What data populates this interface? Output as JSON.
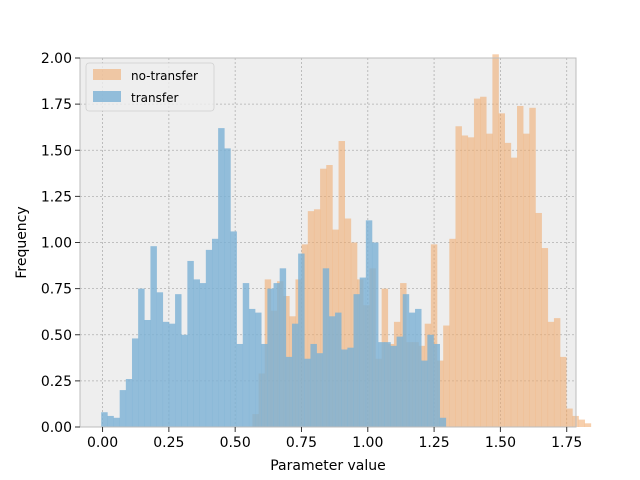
{
  "chart_data": {
    "type": "bar",
    "xlabel": "Parameter value",
    "ylabel": "Frequency",
    "xlim": [
      -0.085,
      1.785
    ],
    "ylim": [
      0,
      2.0
    ],
    "xticks": [
      "0.00",
      "0.25",
      "0.50",
      "0.75",
      "1.00",
      "1.25",
      "1.50",
      "1.75"
    ],
    "xtick_values": [
      0.0,
      0.25,
      0.5,
      0.75,
      1.0,
      1.25,
      1.5,
      1.75
    ],
    "yticks": [
      "0.00",
      "0.25",
      "0.50",
      "0.75",
      "1.00",
      "1.25",
      "1.50",
      "1.75",
      "2.00"
    ],
    "ytick_values": [
      0.0,
      0.25,
      0.5,
      0.75,
      1.0,
      1.25,
      1.5,
      1.75,
      2.0
    ],
    "grid": true,
    "legend_position": "top-left",
    "background_color": "#eeeeee",
    "series": [
      {
        "name": "no-transfer",
        "color": "#f0a868",
        "opacity": 0.55,
        "bin_start": 0.565,
        "bin_width": 0.0232,
        "values": [
          0.07,
          0.29,
          0.8,
          0.63,
          0.79,
          0.71,
          0.6,
          0.8,
          0.99,
          1.17,
          1.18,
          1.4,
          1.42,
          1.07,
          1.55,
          1.13,
          1.0,
          0.8,
          0.66,
          0.86,
          0.37,
          0.75,
          0.45,
          0.57,
          0.78,
          0.46,
          0.46,
          0.44,
          0.56,
          0.99,
          0.36,
          0.55,
          1.02,
          1.63,
          1.58,
          1.57,
          1.78,
          1.79,
          1.59,
          2.02,
          1.7,
          1.54,
          1.46,
          1.74,
          1.59,
          1.73,
          1.16,
          0.97,
          0.57,
          0.59,
          0.38,
          0.1,
          0.06,
          0.04,
          0.02
        ]
      },
      {
        "name": "transfer",
        "color": "#7ab0d4",
        "opacity": 0.8,
        "bin_start": -0.005,
        "bin_width": 0.0232,
        "values": [
          0.08,
          0.06,
          0.05,
          0.2,
          0.26,
          0.48,
          0.75,
          0.58,
          0.98,
          0.73,
          0.57,
          0.56,
          0.72,
          0.5,
          0.9,
          0.8,
          0.78,
          0.96,
          1.02,
          1.62,
          1.51,
          1.06,
          0.45,
          0.78,
          0.64,
          0.62,
          0.45,
          0.75,
          0.78,
          0.86,
          0.38,
          0.56,
          0.94,
          0.37,
          0.45,
          0.4,
          0.86,
          0.6,
          0.62,
          0.42,
          0.43,
          0.72,
          0.81,
          1.12,
          1.0,
          0.46,
          0.46,
          0.44,
          0.49,
          0.72,
          0.62,
          0.64,
          0.36,
          0.5,
          0.45,
          0.05
        ]
      }
    ]
  }
}
